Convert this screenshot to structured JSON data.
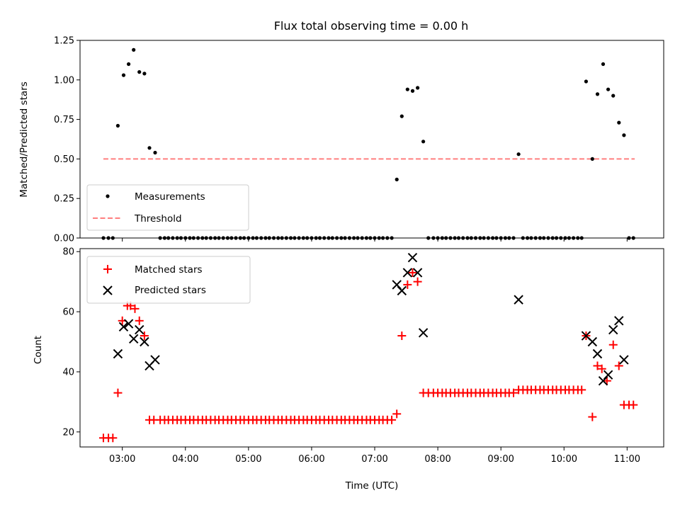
{
  "chart_data": [
    {
      "type": "scatter",
      "title": "Flux total observing time = 0.00 h",
      "xlabel": "",
      "ylabel": "Matched/Predicted stars",
      "ylim": [
        0,
        1.25
      ],
      "yticks": [
        0,
        0.25,
        0.5,
        0.75,
        1.0,
        1.25
      ],
      "ytick_labels": [
        "0.00",
        "0.25",
        "0.50",
        "0.75",
        "1.00",
        "1.25"
      ],
      "xlim_hours": [
        2.33,
        11.58
      ],
      "legend_position": "lower-left",
      "series": [
        {
          "name": "Measurements",
          "color": "#000000",
          "marker": "dot",
          "points": [
            [
              2.7,
              0
            ],
            [
              2.78,
              0
            ],
            [
              2.85,
              0
            ],
            [
              2.93,
              0.71
            ],
            [
              3.02,
              1.03
            ],
            [
              3.1,
              1.1
            ],
            [
              3.18,
              1.19
            ],
            [
              3.27,
              1.05
            ],
            [
              3.35,
              1.04
            ],
            [
              3.43,
              0.57
            ],
            [
              3.52,
              0.54
            ],
            [
              3.6,
              0
            ],
            [
              3.67,
              0
            ],
            [
              3.73,
              0
            ],
            [
              3.8,
              0
            ],
            [
              3.87,
              0
            ],
            [
              3.93,
              0
            ],
            [
              4.0,
              0
            ],
            [
              4.07,
              0
            ],
            [
              4.13,
              0
            ],
            [
              4.2,
              0
            ],
            [
              4.27,
              0
            ],
            [
              4.33,
              0
            ],
            [
              4.4,
              0
            ],
            [
              4.47,
              0
            ],
            [
              4.53,
              0
            ],
            [
              4.6,
              0
            ],
            [
              4.67,
              0
            ],
            [
              4.73,
              0
            ],
            [
              4.8,
              0
            ],
            [
              4.87,
              0
            ],
            [
              4.93,
              0
            ],
            [
              5.0,
              0
            ],
            [
              5.07,
              0
            ],
            [
              5.13,
              0
            ],
            [
              5.2,
              0
            ],
            [
              5.27,
              0
            ],
            [
              5.33,
              0
            ],
            [
              5.4,
              0
            ],
            [
              5.47,
              0
            ],
            [
              5.53,
              0
            ],
            [
              5.6,
              0
            ],
            [
              5.67,
              0
            ],
            [
              5.73,
              0
            ],
            [
              5.8,
              0
            ],
            [
              5.87,
              0
            ],
            [
              5.93,
              0
            ],
            [
              6.0,
              0
            ],
            [
              6.07,
              0
            ],
            [
              6.13,
              0
            ],
            [
              6.2,
              0
            ],
            [
              6.27,
              0
            ],
            [
              6.33,
              0
            ],
            [
              6.4,
              0
            ],
            [
              6.47,
              0
            ],
            [
              6.53,
              0
            ],
            [
              6.6,
              0
            ],
            [
              6.67,
              0
            ],
            [
              6.73,
              0
            ],
            [
              6.8,
              0
            ],
            [
              6.87,
              0
            ],
            [
              6.93,
              0
            ],
            [
              7.0,
              0
            ],
            [
              7.07,
              0
            ],
            [
              7.13,
              0
            ],
            [
              7.2,
              0
            ],
            [
              7.27,
              0
            ],
            [
              7.35,
              0.37
            ],
            [
              7.43,
              0.77
            ],
            [
              7.52,
              0.94
            ],
            [
              7.6,
              0.93
            ],
            [
              7.68,
              0.95
            ],
            [
              7.77,
              0.61
            ],
            [
              7.85,
              0
            ],
            [
              7.93,
              0
            ],
            [
              8.0,
              0
            ],
            [
              8.07,
              0
            ],
            [
              8.13,
              0
            ],
            [
              8.2,
              0
            ],
            [
              8.27,
              0
            ],
            [
              8.33,
              0
            ],
            [
              8.4,
              0
            ],
            [
              8.47,
              0
            ],
            [
              8.53,
              0
            ],
            [
              8.6,
              0
            ],
            [
              8.67,
              0
            ],
            [
              8.73,
              0
            ],
            [
              8.8,
              0
            ],
            [
              8.87,
              0
            ],
            [
              8.93,
              0
            ],
            [
              9.0,
              0
            ],
            [
              9.07,
              0
            ],
            [
              9.13,
              0
            ],
            [
              9.2,
              0
            ],
            [
              9.28,
              0.53
            ],
            [
              9.35,
              0
            ],
            [
              9.42,
              0
            ],
            [
              9.48,
              0
            ],
            [
              9.55,
              0
            ],
            [
              9.62,
              0
            ],
            [
              9.68,
              0
            ],
            [
              9.75,
              0
            ],
            [
              9.82,
              0
            ],
            [
              9.88,
              0
            ],
            [
              9.95,
              0
            ],
            [
              10.02,
              0
            ],
            [
              10.08,
              0
            ],
            [
              10.15,
              0
            ],
            [
              10.22,
              0
            ],
            [
              10.28,
              0
            ],
            [
              10.35,
              0.99
            ],
            [
              10.45,
              0.5
            ],
            [
              10.53,
              0.91
            ],
            [
              10.62,
              1.1
            ],
            [
              10.7,
              0.94
            ],
            [
              10.78,
              0.9
            ],
            [
              10.87,
              0.73
            ],
            [
              10.95,
              0.65
            ],
            [
              11.03,
              0
            ],
            [
              11.1,
              0
            ]
          ]
        },
        {
          "name": "Threshold",
          "color": "#ff7f7f",
          "style": "dashed",
          "points": [
            [
              2.7,
              0.5
            ],
            [
              11.12,
              0.5
            ]
          ]
        }
      ]
    },
    {
      "type": "scatter",
      "xlabel": "Time (UTC)",
      "ylabel": "Count",
      "ylim": [
        15,
        81
      ],
      "yticks": [
        20,
        40,
        60,
        80
      ],
      "ytick_labels": [
        "20",
        "40",
        "60",
        "80"
      ],
      "xlim_hours": [
        2.33,
        11.58
      ],
      "xticks_hours": [
        3,
        4,
        5,
        6,
        7,
        8,
        9,
        10,
        11
      ],
      "xtick_labels": [
        "03:00",
        "04:00",
        "05:00",
        "06:00",
        "07:00",
        "08:00",
        "09:00",
        "10:00",
        "11:00"
      ],
      "legend_position": "upper-left",
      "series": [
        {
          "name": "Matched stars",
          "color": "#ff0000",
          "marker": "plus",
          "points": [
            [
              2.7,
              18
            ],
            [
              2.78,
              18
            ],
            [
              2.85,
              18
            ],
            [
              2.93,
              33
            ],
            [
              3.0,
              57
            ],
            [
              3.08,
              62
            ],
            [
              3.13,
              62
            ],
            [
              3.2,
              61
            ],
            [
              3.27,
              57
            ],
            [
              3.35,
              52
            ],
            [
              3.43,
              24
            ],
            [
              3.5,
              24
            ],
            [
              3.6,
              24
            ],
            [
              3.67,
              24
            ],
            [
              3.73,
              24
            ],
            [
              3.8,
              24
            ],
            [
              3.87,
              24
            ],
            [
              3.93,
              24
            ],
            [
              4.0,
              24
            ],
            [
              4.07,
              24
            ],
            [
              4.13,
              24
            ],
            [
              4.2,
              24
            ],
            [
              4.27,
              24
            ],
            [
              4.33,
              24
            ],
            [
              4.4,
              24
            ],
            [
              4.47,
              24
            ],
            [
              4.53,
              24
            ],
            [
              4.6,
              24
            ],
            [
              4.67,
              24
            ],
            [
              4.73,
              24
            ],
            [
              4.8,
              24
            ],
            [
              4.87,
              24
            ],
            [
              4.93,
              24
            ],
            [
              5.0,
              24
            ],
            [
              5.07,
              24
            ],
            [
              5.13,
              24
            ],
            [
              5.2,
              24
            ],
            [
              5.27,
              24
            ],
            [
              5.33,
              24
            ],
            [
              5.4,
              24
            ],
            [
              5.47,
              24
            ],
            [
              5.53,
              24
            ],
            [
              5.6,
              24
            ],
            [
              5.67,
              24
            ],
            [
              5.73,
              24
            ],
            [
              5.8,
              24
            ],
            [
              5.87,
              24
            ],
            [
              5.93,
              24
            ],
            [
              6.0,
              24
            ],
            [
              6.07,
              24
            ],
            [
              6.13,
              24
            ],
            [
              6.2,
              24
            ],
            [
              6.27,
              24
            ],
            [
              6.33,
              24
            ],
            [
              6.4,
              24
            ],
            [
              6.47,
              24
            ],
            [
              6.53,
              24
            ],
            [
              6.6,
              24
            ],
            [
              6.67,
              24
            ],
            [
              6.73,
              24
            ],
            [
              6.8,
              24
            ],
            [
              6.87,
              24
            ],
            [
              6.93,
              24
            ],
            [
              7.0,
              24
            ],
            [
              7.07,
              24
            ],
            [
              7.13,
              24
            ],
            [
              7.2,
              24
            ],
            [
              7.27,
              24
            ],
            [
              7.35,
              26
            ],
            [
              7.43,
              52
            ],
            [
              7.52,
              69
            ],
            [
              7.6,
              73
            ],
            [
              7.68,
              70
            ],
            [
              7.77,
              33
            ],
            [
              7.85,
              33
            ],
            [
              7.93,
              33
            ],
            [
              8.0,
              33
            ],
            [
              8.07,
              33
            ],
            [
              8.13,
              33
            ],
            [
              8.2,
              33
            ],
            [
              8.27,
              33
            ],
            [
              8.33,
              33
            ],
            [
              8.4,
              33
            ],
            [
              8.47,
              33
            ],
            [
              8.53,
              33
            ],
            [
              8.6,
              33
            ],
            [
              8.67,
              33
            ],
            [
              8.73,
              33
            ],
            [
              8.8,
              33
            ],
            [
              8.87,
              33
            ],
            [
              8.93,
              33
            ],
            [
              9.0,
              33
            ],
            [
              9.07,
              33
            ],
            [
              9.13,
              33
            ],
            [
              9.2,
              33
            ],
            [
              9.28,
              34
            ],
            [
              9.35,
              34
            ],
            [
              9.42,
              34
            ],
            [
              9.48,
              34
            ],
            [
              9.55,
              34
            ],
            [
              9.62,
              34
            ],
            [
              9.68,
              34
            ],
            [
              9.75,
              34
            ],
            [
              9.82,
              34
            ],
            [
              9.88,
              34
            ],
            [
              9.95,
              34
            ],
            [
              10.02,
              34
            ],
            [
              10.08,
              34
            ],
            [
              10.15,
              34
            ],
            [
              10.22,
              34
            ],
            [
              10.28,
              34
            ],
            [
              10.35,
              52
            ],
            [
              10.45,
              25
            ],
            [
              10.53,
              42
            ],
            [
              10.6,
              41
            ],
            [
              10.68,
              37
            ],
            [
              10.78,
              49
            ],
            [
              10.87,
              42
            ],
            [
              10.95,
              29
            ],
            [
              11.03,
              29
            ],
            [
              11.1,
              29
            ]
          ]
        },
        {
          "name": "Predicted stars",
          "color": "#000000",
          "marker": "x",
          "points": [
            [
              2.93,
              46
            ],
            [
              3.02,
              55
            ],
            [
              3.1,
              56
            ],
            [
              3.18,
              51
            ],
            [
              3.27,
              54
            ],
            [
              3.35,
              50
            ],
            [
              3.43,
              42
            ],
            [
              3.52,
              44
            ],
            [
              7.35,
              69
            ],
            [
              7.43,
              67
            ],
            [
              7.52,
              73
            ],
            [
              7.6,
              78
            ],
            [
              7.68,
              73
            ],
            [
              7.77,
              53
            ],
            [
              9.28,
              64
            ],
            [
              10.35,
              52
            ],
            [
              10.45,
              50
            ],
            [
              10.53,
              46
            ],
            [
              10.62,
              37
            ],
            [
              10.7,
              39
            ],
            [
              10.78,
              54
            ],
            [
              10.87,
              57
            ],
            [
              10.95,
              44
            ]
          ]
        }
      ]
    }
  ]
}
